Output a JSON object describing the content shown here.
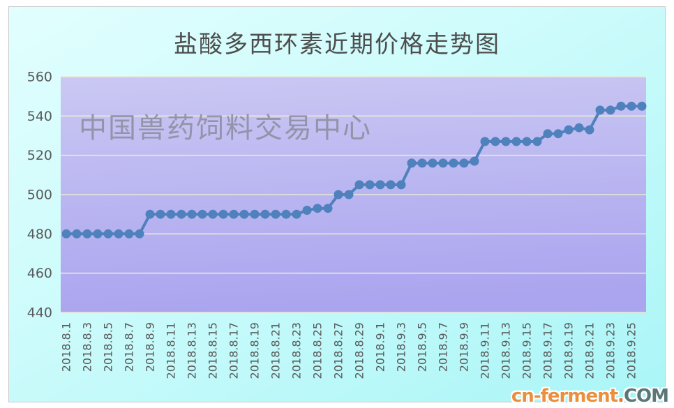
{
  "watermark": {
    "text": "中国兽药饲料交易中心"
  },
  "logo": {
    "brand": "cn-ferment",
    "dot": ".",
    "tld": "COM"
  },
  "chart_data": {
    "type": "line",
    "title": "盐酸多西环素近期价格走势图",
    "x": [
      "2018.8.1",
      "2018.8.2",
      "2018.8.3",
      "2018.8.4",
      "2018.8.5",
      "2018.8.6",
      "2018.8.7",
      "2018.8.8",
      "2018.8.9",
      "2018.8.10",
      "2018.8.11",
      "2018.8.12",
      "2018.8.13",
      "2018.8.14",
      "2018.8.15",
      "2018.8.16",
      "2018.8.17",
      "2018.8.18",
      "2018.8.19",
      "2018.8.20",
      "2018.8.21",
      "2018.8.22",
      "2018.8.23",
      "2018.8.24",
      "2018.8.25",
      "2018.8.26",
      "2018.8.27",
      "2018.8.28",
      "2018.8.29",
      "2018.8.30",
      "2018.9.1",
      "2018.9.2",
      "2018.9.3",
      "2018.9.4",
      "2018.9.5",
      "2018.9.6",
      "2018.9.7",
      "2018.9.8",
      "2018.9.9",
      "2018.9.10",
      "2018.9.11",
      "2018.9.12",
      "2018.9.13",
      "2018.9.14",
      "2018.9.15",
      "2018.9.16",
      "2018.9.17",
      "2018.9.18",
      "2018.9.19",
      "2018.9.20",
      "2018.9.21",
      "2018.9.22",
      "2018.9.23",
      "2018.9.24",
      "2018.9.25",
      "2018.9.26"
    ],
    "values": [
      480,
      480,
      480,
      480,
      480,
      480,
      480,
      480,
      490,
      490,
      490,
      490,
      490,
      490,
      490,
      490,
      490,
      490,
      490,
      490,
      490,
      490,
      490,
      492,
      493,
      493,
      500,
      500,
      505,
      505,
      505,
      505,
      505,
      516,
      516,
      516,
      516,
      516,
      516,
      517,
      527,
      527,
      527,
      527,
      527,
      527,
      531,
      531,
      533,
      534,
      533,
      543,
      543,
      545,
      545,
      545
    ],
    "series_name": "价格",
    "xlabel": "",
    "ylabel": "",
    "ylim": [
      440,
      560
    ],
    "yticks": [
      440,
      460,
      480,
      500,
      520,
      540,
      560
    ],
    "xtick_every": 2,
    "grid": "horizontal",
    "legend": "none",
    "marker": "circle",
    "series_color": "#4f81bd",
    "plot_bg_top": "#cac8f3",
    "plot_bg_bottom": "#aba5ef",
    "gridline_color": "#e9e9d6",
    "tick_color": "#595959"
  }
}
